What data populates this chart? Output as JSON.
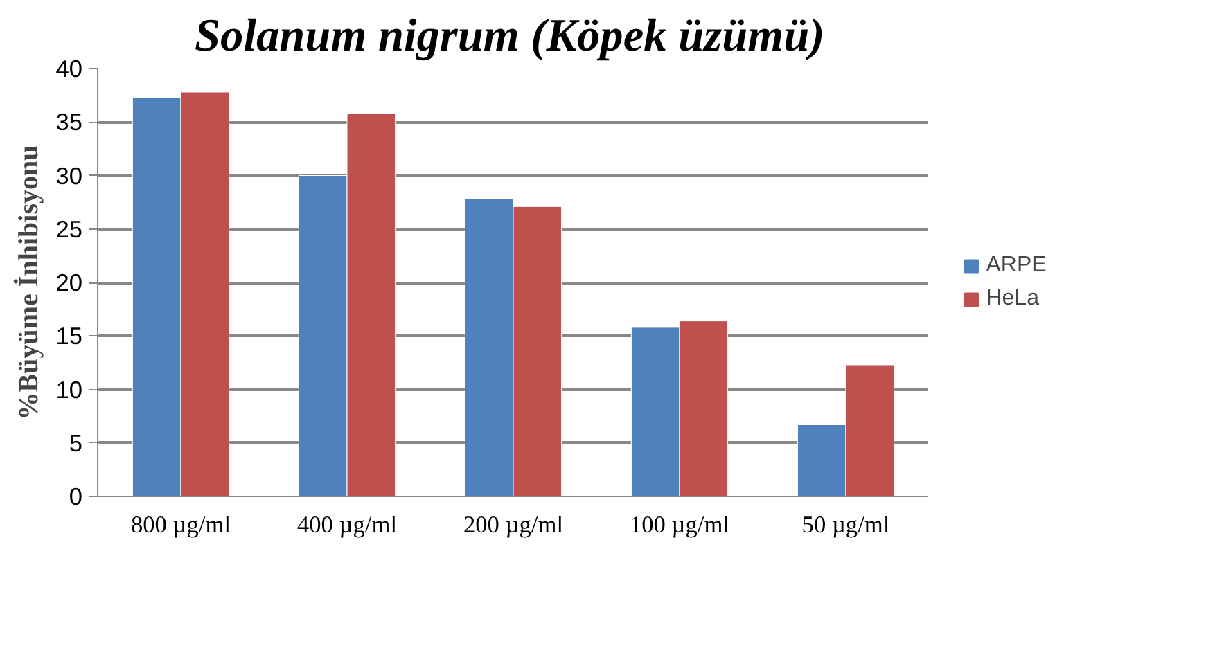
{
  "chart_data": {
    "type": "bar",
    "title": "Solanum  nigrum (Köpek üzümü)",
    "ylabel": "%Büyüme İnhibisyonu",
    "categories": [
      "800 µg/ml",
      "400 µg/ml",
      "200 µg/ml",
      "100 µg/ml",
      "50 µg/ml"
    ],
    "series": [
      {
        "name": "ARPE",
        "color": "#4f81bd",
        "values": [
          37.3,
          30.0,
          27.8,
          15.8,
          6.7
        ]
      },
      {
        "name": "HeLa",
        "color": "#c0504d",
        "values": [
          37.8,
          35.8,
          27.1,
          16.4,
          12.3
        ]
      }
    ],
    "ylim": [
      0,
      40
    ],
    "yticks": [
      0,
      5,
      10,
      15,
      20,
      25,
      30,
      35,
      40
    ],
    "grid": "y",
    "legend": "right"
  }
}
